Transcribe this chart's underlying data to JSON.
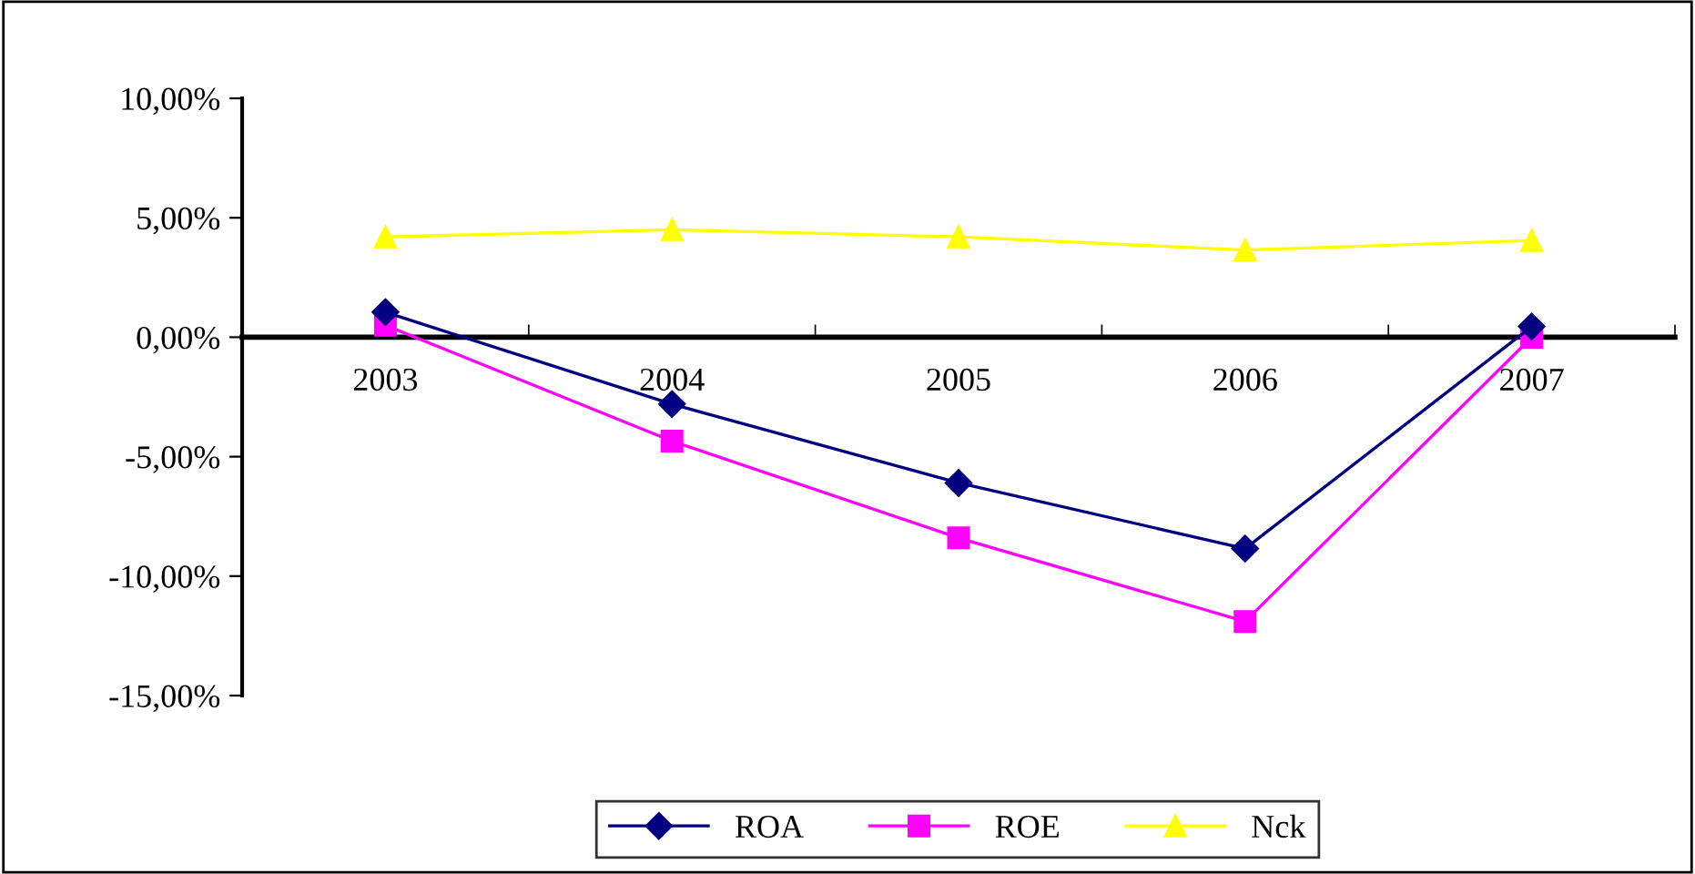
{
  "chart_data": {
    "type": "line",
    "categories": [
      "2003",
      "2004",
      "2005",
      "2006",
      "2007"
    ],
    "series": [
      {
        "name": "ROA",
        "color": "#000080",
        "marker": "diamond",
        "values": [
          1.05,
          -2.8,
          -6.1,
          -8.85,
          0.45
        ]
      },
      {
        "name": "ROE",
        "color": "#ff00ff",
        "marker": "square",
        "values": [
          0.5,
          -4.35,
          -8.4,
          -11.9,
          0.0
        ]
      },
      {
        "name": "Nck",
        "color": "#ffff00",
        "marker": "triangle",
        "values": [
          4.2,
          4.5,
          4.2,
          3.65,
          4.05
        ]
      }
    ],
    "ylim": [
      -15,
      10
    ],
    "yticks": [
      {
        "value": -15,
        "label": "-15,00%"
      },
      {
        "value": -10,
        "label": "-10,00%"
      },
      {
        "value": -5,
        "label": "-5,00%"
      },
      {
        "value": 0,
        "label": "0,00%"
      },
      {
        "value": 5,
        "label": "5,00%"
      },
      {
        "value": 10,
        "label": "10,00%"
      }
    ],
    "grid": false,
    "legend": "bottom",
    "line_style": "solid"
  }
}
